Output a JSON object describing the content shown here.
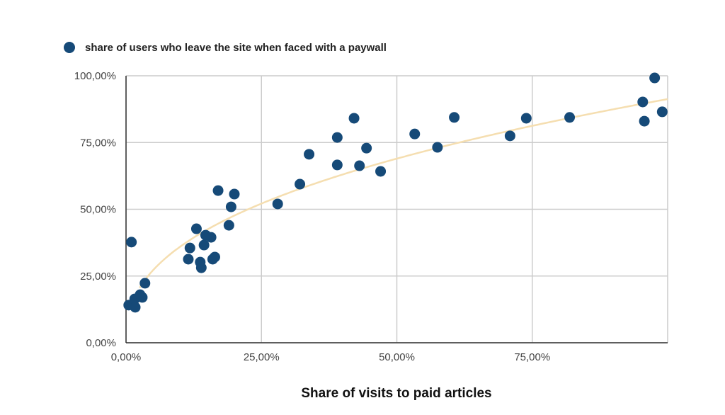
{
  "chart_data": {
    "type": "scatter",
    "title": "",
    "xlabel": "Share of visits to paid articles",
    "ylabel": "",
    "xlim": [
      0,
      100
    ],
    "ylim": [
      0,
      100
    ],
    "x_ticks": [
      "0,00%",
      "25,00%",
      "50,00%",
      "75,00%"
    ],
    "x_tick_values": [
      0,
      25,
      50,
      75
    ],
    "y_ticks": [
      "0,00%",
      "25,00%",
      "50,00%",
      "75,00%",
      "100,00%"
    ],
    "y_tick_values": [
      0,
      25,
      50,
      75,
      100
    ],
    "grid": true,
    "legend_position": "top-left",
    "series": [
      {
        "name": "share of users who leave the site when faced with a paywall",
        "color": "#164a78",
        "points": [
          [
            0.5,
            14.1
          ],
          [
            1.0,
            37.7
          ],
          [
            1.6,
            16.4
          ],
          [
            1.7,
            13.3
          ],
          [
            2.6,
            18.0
          ],
          [
            3.0,
            17.0
          ],
          [
            3.5,
            22.3
          ],
          [
            11.5,
            31.3
          ],
          [
            11.8,
            35.5
          ],
          [
            13.0,
            42.7
          ],
          [
            13.7,
            30.2
          ],
          [
            13.9,
            28.1
          ],
          [
            14.4,
            36.6
          ],
          [
            14.7,
            40.3
          ],
          [
            15.7,
            39.5
          ],
          [
            16.0,
            31.3
          ],
          [
            16.4,
            32.1
          ],
          [
            17.0,
            57.0
          ],
          [
            19.0,
            44.0
          ],
          [
            19.4,
            50.9
          ],
          [
            20.0,
            55.7
          ],
          [
            28.0,
            52.0
          ],
          [
            32.1,
            59.4
          ],
          [
            33.8,
            70.6
          ],
          [
            39.0,
            76.9
          ],
          [
            39.0,
            66.6
          ],
          [
            42.1,
            84.1
          ],
          [
            43.1,
            66.3
          ],
          [
            44.4,
            72.9
          ],
          [
            47.0,
            64.2
          ],
          [
            53.3,
            78.2
          ],
          [
            57.5,
            73.2
          ],
          [
            60.6,
            84.4
          ],
          [
            70.9,
            77.5
          ],
          [
            73.9,
            84.1
          ],
          [
            81.9,
            84.4
          ],
          [
            95.4,
            90.2
          ],
          [
            95.7,
            83.0
          ],
          [
            97.6,
            99.2
          ],
          [
            99.0,
            86.5
          ]
        ]
      }
    ],
    "trendline": {
      "type": "power",
      "coefficient": 14.2,
      "exponent": 0.404,
      "x_range": [
        2.5,
        100
      ],
      "color": "#f5deb0"
    }
  }
}
